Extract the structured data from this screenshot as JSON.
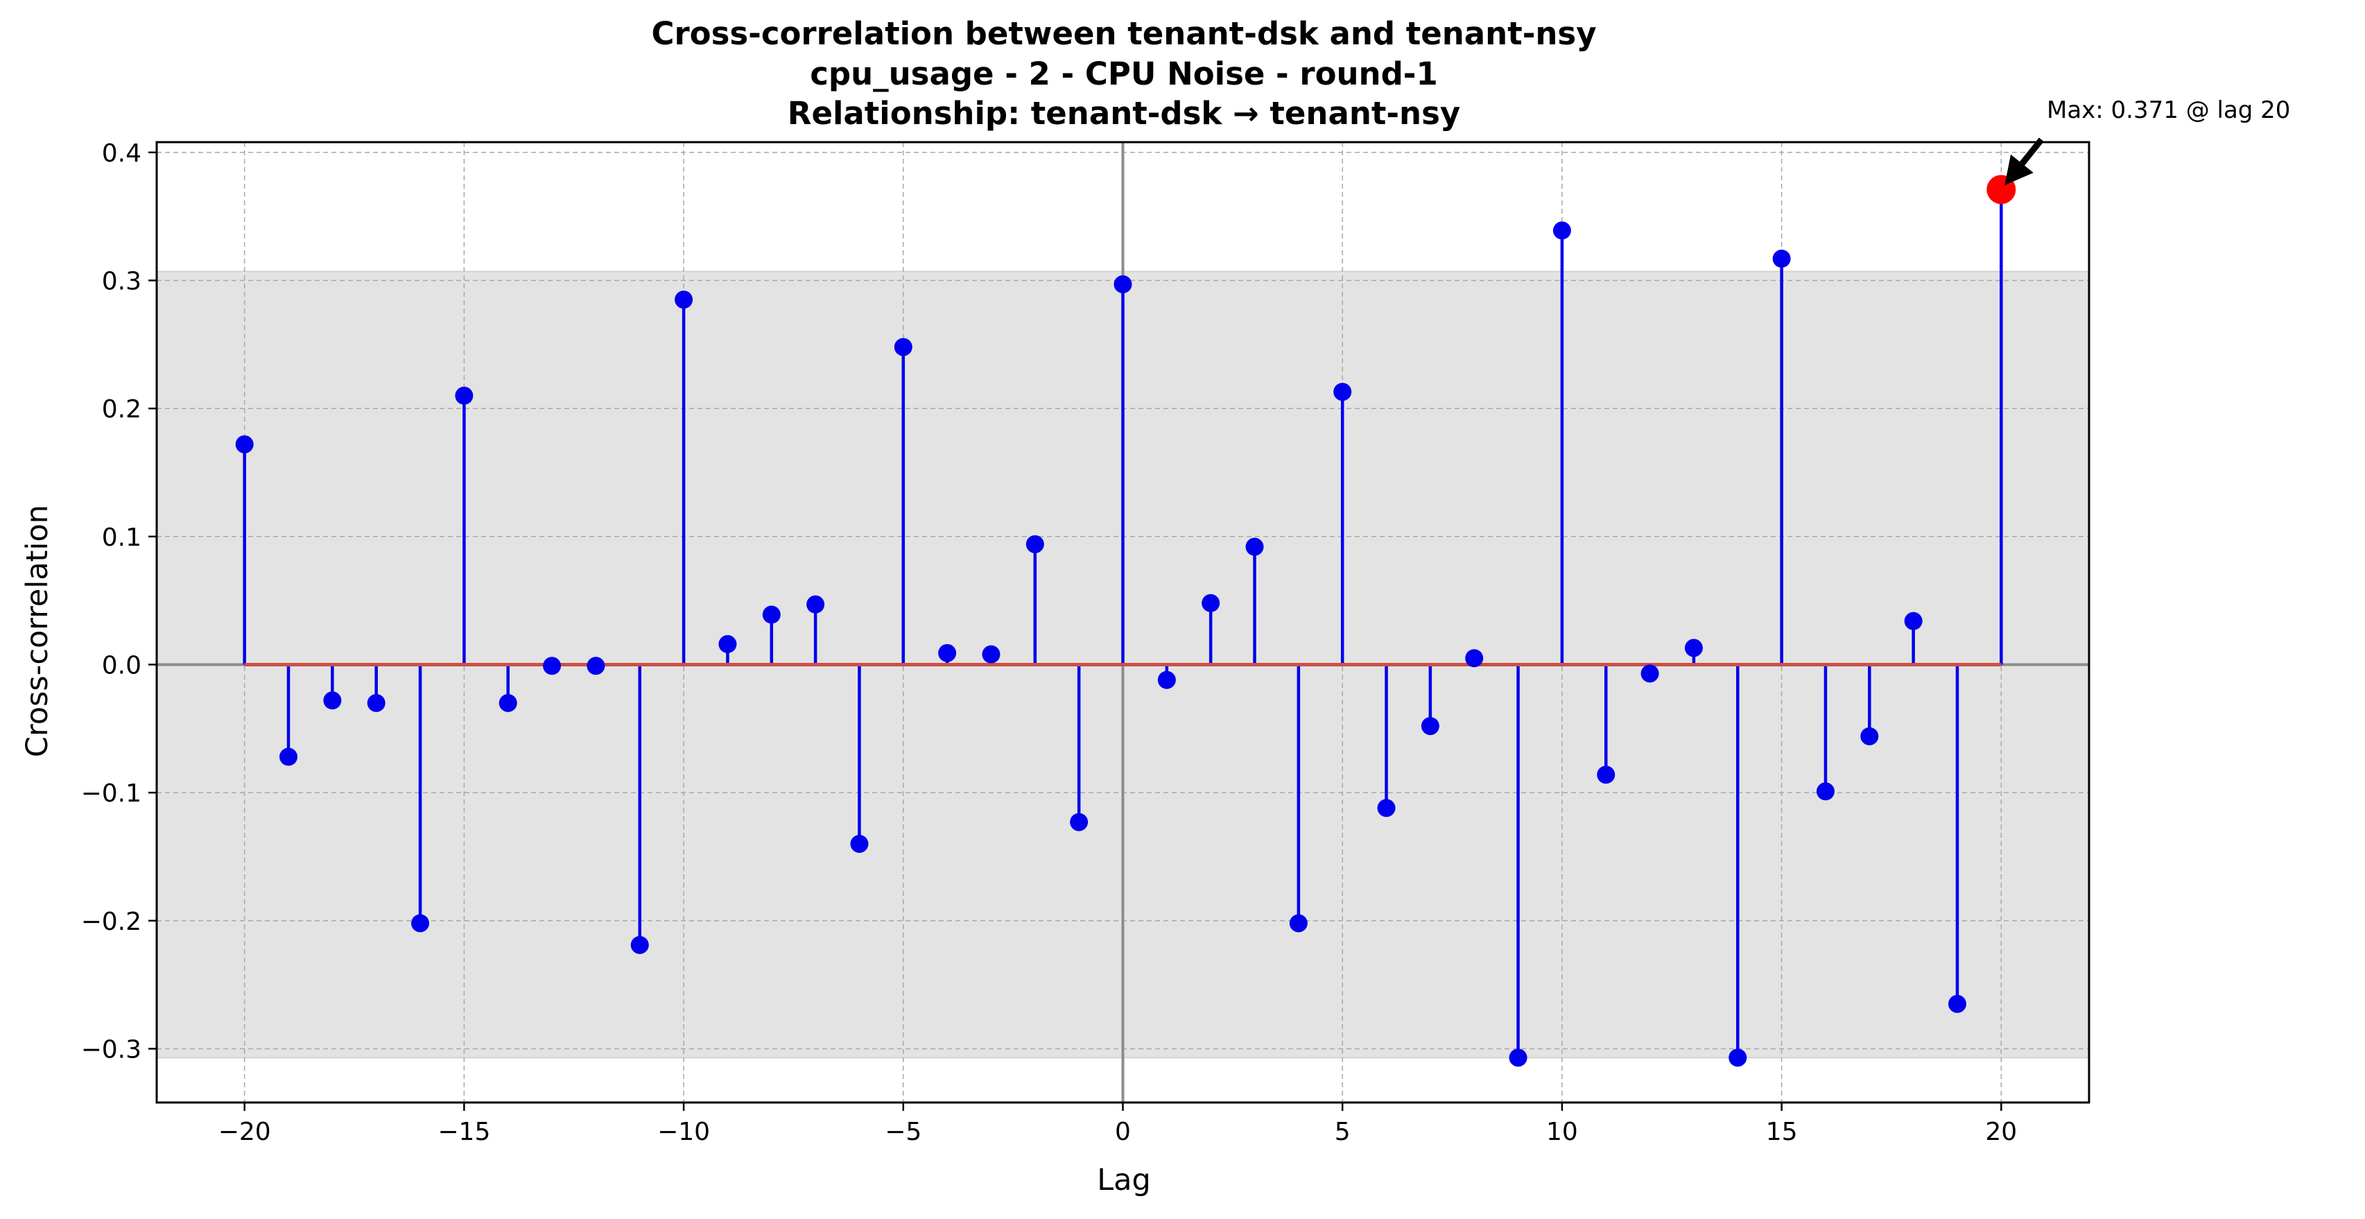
{
  "chart_data": {
    "type": "stem",
    "title": [
      "Cross-correlation between tenant-dsk and tenant-nsy",
      "cpu_usage - 2 - CPU Noise - round-1",
      "Relationship: tenant-dsk → tenant-nsy"
    ],
    "xlabel": "Lag",
    "ylabel": "Cross-correlation",
    "xlim": [
      -22,
      22
    ],
    "ylim": [
      -0.342,
      0.408
    ],
    "xticks": [
      -20,
      -15,
      -10,
      -5,
      0,
      5,
      10,
      15,
      20
    ],
    "xtick_labels": [
      "−20",
      "−15",
      "−10",
      "−5",
      "0",
      "5",
      "10",
      "15",
      "20"
    ],
    "yticks": [
      -0.3,
      -0.2,
      -0.1,
      0.0,
      0.1,
      0.2,
      0.3,
      0.4
    ],
    "ytick_labels": [
      "−0.3",
      "−0.2",
      "−0.1",
      "0.0",
      "0.1",
      "0.2",
      "0.3",
      "0.4"
    ],
    "grid": true,
    "significance_band": [
      -0.307,
      0.307
    ],
    "x": [
      -20,
      -19,
      -18,
      -17,
      -16,
      -15,
      -14,
      -13,
      -12,
      -11,
      -10,
      -9,
      -8,
      -7,
      -6,
      -5,
      -4,
      -3,
      -2,
      -1,
      0,
      1,
      2,
      3,
      4,
      5,
      6,
      7,
      8,
      9,
      10,
      11,
      12,
      13,
      14,
      15,
      16,
      17,
      18,
      19,
      20
    ],
    "y": [
      0.172,
      -0.072,
      -0.028,
      -0.03,
      -0.202,
      0.21,
      -0.03,
      -0.001,
      -0.001,
      -0.219,
      0.285,
      0.016,
      0.039,
      0.047,
      -0.14,
      0.248,
      0.009,
      0.008,
      0.094,
      -0.123,
      0.297,
      -0.012,
      0.048,
      0.092,
      -0.202,
      0.213,
      -0.112,
      -0.048,
      0.005,
      -0.307,
      0.339,
      -0.086,
      -0.007,
      0.013,
      -0.307,
      0.317,
      -0.099,
      -0.056,
      0.034,
      -0.265,
      0.371
    ],
    "stem_color": "#0000ee",
    "marker_color": "#0000ee",
    "baseline_color": "#cd4f45",
    "max_marker_color": "#ff0000",
    "band_color": "#e3e3e3",
    "annotation": {
      "text": "Max: 0.371 @ lag 20",
      "x": 20,
      "y": 0.371
    }
  }
}
